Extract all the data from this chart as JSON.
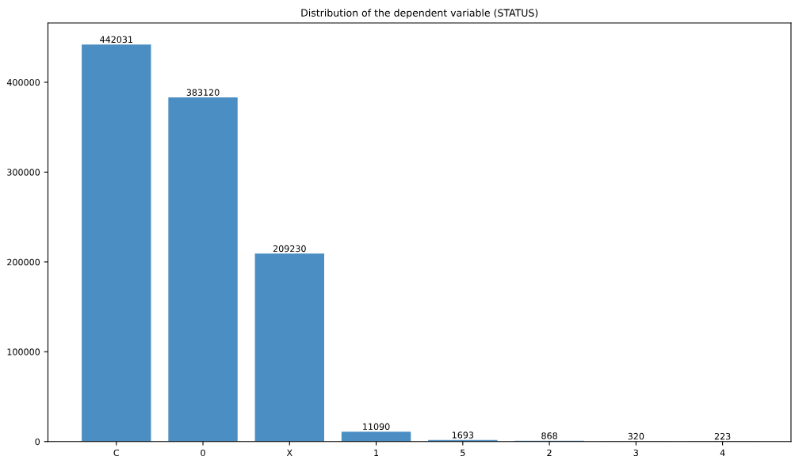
{
  "chart_data": {
    "type": "bar",
    "title": "Distribution of the dependent variable (STATUS)",
    "categories": [
      "C",
      "0",
      "X",
      "1",
      "5",
      "2",
      "3",
      "4"
    ],
    "values": [
      442031,
      383120,
      209230,
      11090,
      1693,
      868,
      320,
      223
    ],
    "color": "#4b8ec3",
    "data_labels": true,
    "grid": false,
    "ylim": [
      0,
      466000
    ],
    "yticks": [
      0,
      100000,
      200000,
      300000,
      400000
    ]
  }
}
